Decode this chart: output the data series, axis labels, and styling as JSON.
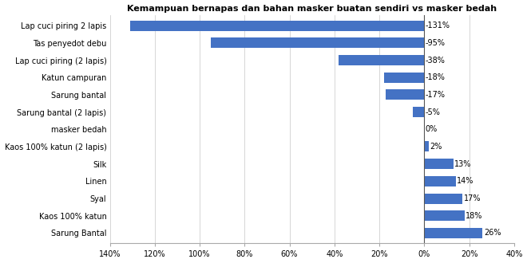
{
  "title": "Kemampuan bernapas dan bahan masker buatan sendiri vs masker bedah",
  "categories": [
    "Lap cuci piring 2 lapis",
    "Tas penyedot debu",
    "Lap cuci piring (2 lapis)",
    "Katun campuran",
    "Sarung bantal",
    "Sarung bantal (2 lapis)",
    "masker bedah",
    "Kaos 100% katun (2 lapis)",
    "Silk",
    "Linen",
    "Syal",
    "Kaos 100% katun",
    "Sarung Bantal"
  ],
  "values": [
    -131,
    -95,
    -38,
    -18,
    -17,
    -5,
    0,
    2,
    13,
    14,
    17,
    18,
    26
  ],
  "labels": [
    "-131%",
    "-95%",
    "-38%",
    "-18%",
    "-17%",
    "-5%",
    "0%",
    "2%",
    "13%",
    "14%",
    "17%",
    "18%",
    "26%"
  ],
  "bar_color": "#4472C4",
  "xlim": [
    -140,
    40
  ],
  "xticks": [
    -140,
    -120,
    -100,
    -80,
    -60,
    -40,
    -20,
    0,
    20,
    40
  ],
  "xticklabels": [
    "140%",
    "120%",
    "100%",
    "80%",
    "60%",
    "40%",
    "20%",
    "0%",
    "20%",
    "40%"
  ],
  "title_fontsize": 8,
  "label_fontsize": 7,
  "tick_fontsize": 7,
  "background_color": "#ffffff",
  "grid_color": "#d0d0d0",
  "bar_height": 0.6
}
